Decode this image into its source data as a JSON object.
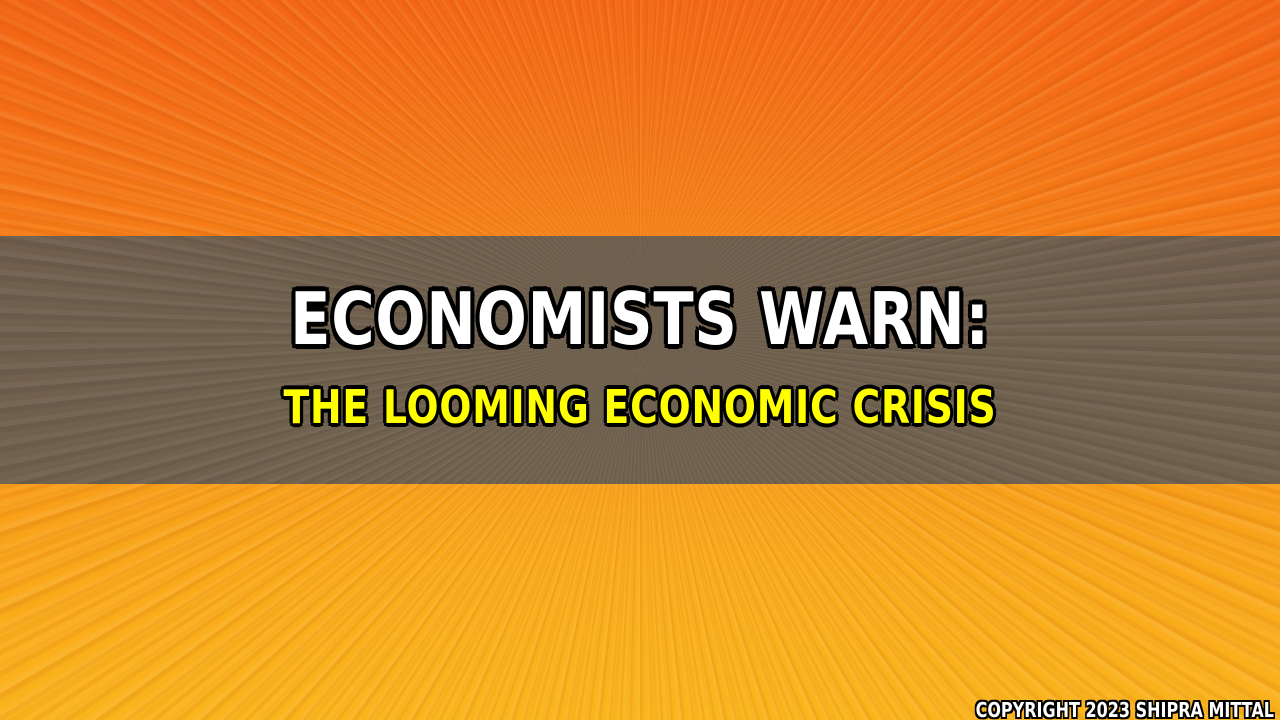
{
  "headline": {
    "title": "ECONOMISTS WARN:",
    "subtitle": "THE LOOMING ECONOMIC CRISIS"
  },
  "footer": {
    "copyright": "COPYRIGHT 2023 SHIPRA MITTAL"
  },
  "colors": {
    "background_top": "#f06a1e",
    "background_bottom": "#f7b52c",
    "banner": "#645c52",
    "title_text": "#ffffff",
    "subtitle_text": "#ffff00",
    "outline": "#000000"
  }
}
